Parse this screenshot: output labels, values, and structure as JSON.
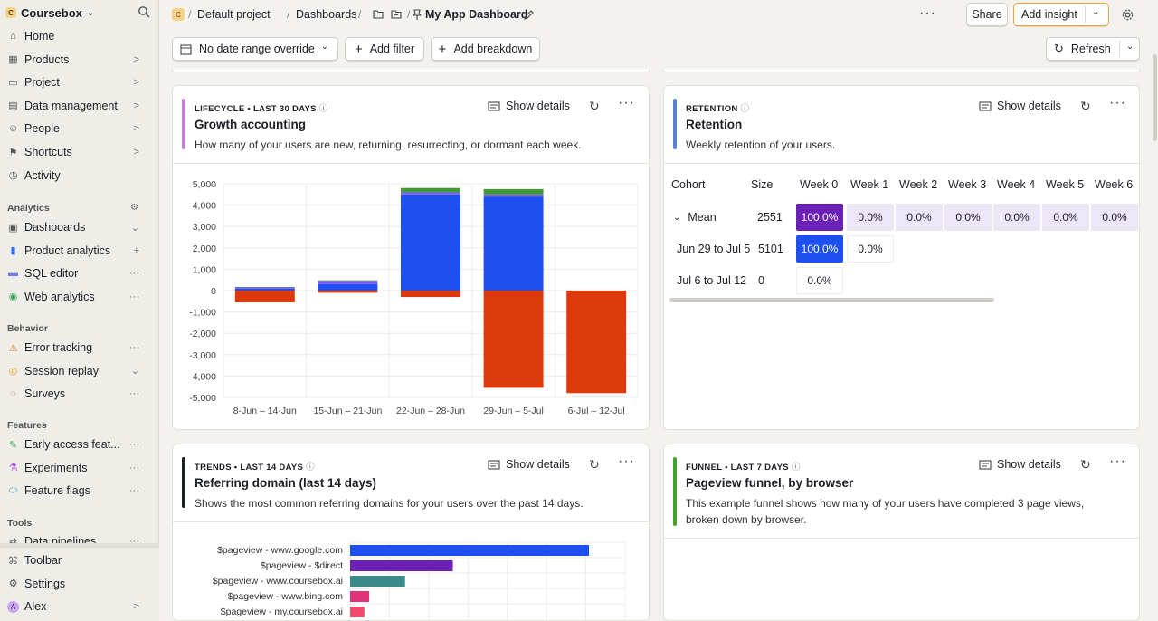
{
  "sidebar": {
    "org": "Coursebox",
    "org_initial": "C",
    "items": [
      {
        "label": "Home",
        "trail": ""
      },
      {
        "label": "Products",
        "trail": ">"
      },
      {
        "label": "Project",
        "trail": ">"
      },
      {
        "label": "Data management",
        "trail": ">"
      },
      {
        "label": "People",
        "trail": ">"
      },
      {
        "label": "Shortcuts",
        "trail": ">"
      },
      {
        "label": "Activity",
        "trail": ""
      }
    ],
    "analytics_title": "Analytics",
    "analytics": [
      {
        "label": "Dashboards",
        "trail": "⌄"
      },
      {
        "label": "Product analytics",
        "trail": "+"
      },
      {
        "label": "SQL editor",
        "trail": "···"
      },
      {
        "label": "Web analytics",
        "trail": "···"
      }
    ],
    "behavior_title": "Behavior",
    "behavior": [
      {
        "label": "Error tracking",
        "trail": "···"
      },
      {
        "label": "Session replay",
        "trail": "⌄"
      },
      {
        "label": "Surveys",
        "trail": "···"
      }
    ],
    "features_title": "Features",
    "features": [
      {
        "label": "Early access feat...",
        "trail": "···"
      },
      {
        "label": "Experiments",
        "trail": "···"
      },
      {
        "label": "Feature flags",
        "trail": "···"
      }
    ],
    "tools_title": "Tools",
    "tools": [
      {
        "label": "Data pipelines",
        "trail": "···"
      }
    ],
    "bottom": [
      {
        "label": "Toolbar",
        "trail": ""
      },
      {
        "label": "Settings",
        "trail": ""
      },
      {
        "label": "Alex",
        "trail": ">",
        "initial": "A"
      }
    ]
  },
  "topbar": {
    "project_initial": "C",
    "crumbs": [
      "Default project",
      "Dashboards"
    ],
    "dashboard_name": "My App Dashboard",
    "share": "Share",
    "add_insight": "Add insight"
  },
  "filters": {
    "date_range": "No date range override",
    "add_filter": "Add filter",
    "add_breakdown": "Add breakdown",
    "refresh": "Refresh"
  },
  "colors": {
    "lifecycle_accent": "#c77ed9",
    "retention_accent": "#5c7fd6",
    "trends_accent": "#1d1f27",
    "funnel_accent": "#3fa52a",
    "new": "#1e4ff0",
    "returning": "#7b5cf0",
    "resurrecting": "#3f9a36",
    "dormant": "#dd3a0c",
    "retention_purple": "#6b21b8",
    "retention_blue": "#1e4ff0",
    "retention_light": "#ece6f7"
  },
  "cards": {
    "lifecycle": {
      "kicker": "LIFECYCLE • LAST 30 DAYS",
      "title": "Growth accounting",
      "desc": "How many of your users are new, returning, resurrecting, or dormant each week.",
      "show_details": "Show details"
    },
    "retention": {
      "kicker": "RETENTION",
      "title": "Retention",
      "desc": "Weekly retention of your users.",
      "show_details": "Show details",
      "headers": [
        "Cohort",
        "Size",
        "Week 0",
        "Week 1",
        "Week 2",
        "Week 3",
        "Week 4",
        "Week 5",
        "Week 6"
      ],
      "rows": [
        {
          "cohort": "Mean",
          "size": "2551",
          "values": [
            "100.0%",
            "0.0%",
            "0.0%",
            "0.0%",
            "0.0%",
            "0.0%",
            "0.0%"
          ]
        },
        {
          "cohort": "Jun 29 to Jul 5",
          "size": "5101",
          "values": [
            "100.0%",
            "0.0%"
          ]
        },
        {
          "cohort": "Jul 6 to Jul 12",
          "size": "0",
          "values": [
            "0.0%"
          ]
        }
      ]
    },
    "trends": {
      "kicker": "TRENDS • LAST 14 DAYS",
      "title": "Referring domain (last 14 days)",
      "desc": "Shows the most common referring domains for your users over the past 14 days.",
      "show_details": "Show details"
    },
    "funnel": {
      "kicker": "FUNNEL • LAST 7 DAYS",
      "title": "Pageview funnel, by browser",
      "desc": "This example funnel shows how many of your users have completed 3 page views, broken down by browser.",
      "show_details": "Show details"
    }
  },
  "chart_data": [
    {
      "type": "bar",
      "stacked": true,
      "categories": [
        "8-Jun – 14-Jun",
        "15-Jun – 21-Jun",
        "22-Jun – 28-Jun",
        "29-Jun – 5-Jul",
        "6-Jul – 12-Jul"
      ],
      "series": [
        {
          "values": [
            100,
            300,
            4500,
            4400,
            0
          ],
          "color": "#1e4ff0"
        },
        {
          "values": [
            50,
            150,
            100,
            100,
            0
          ],
          "color": "#7b5cf0"
        },
        {
          "values": [
            20,
            30,
            200,
            250,
            0
          ],
          "color": "#3f9a36"
        },
        {
          "values": [
            -550,
            -100,
            -300,
            -4550,
            -4800
          ],
          "color": "#dd3a0c"
        }
      ],
      "yticks": [
        "5,000",
        "4,000",
        "3,000",
        "2,000",
        "1,000",
        "0",
        "-1,000",
        "-2,000",
        "-3,000",
        "-4,000",
        "-5,000"
      ],
      "ylim": [
        -5000,
        5000
      ],
      "grid": true
    },
    {
      "type": "bar",
      "orientation": "horizontal",
      "categories": [
        "$pageview - www.google.com",
        "$pageview - $direct",
        "$pageview - www.coursebox.ai",
        "$pageview - www.bing.com",
        "$pageview - my.coursebox.ai"
      ],
      "values": [
        100,
        43,
        23,
        8,
        6
      ],
      "colors": [
        "#1e4ff0",
        "#6b21b8",
        "#3a8a8a",
        "#e0337a",
        "#ef4b6b"
      ],
      "grid": true
    }
  ]
}
